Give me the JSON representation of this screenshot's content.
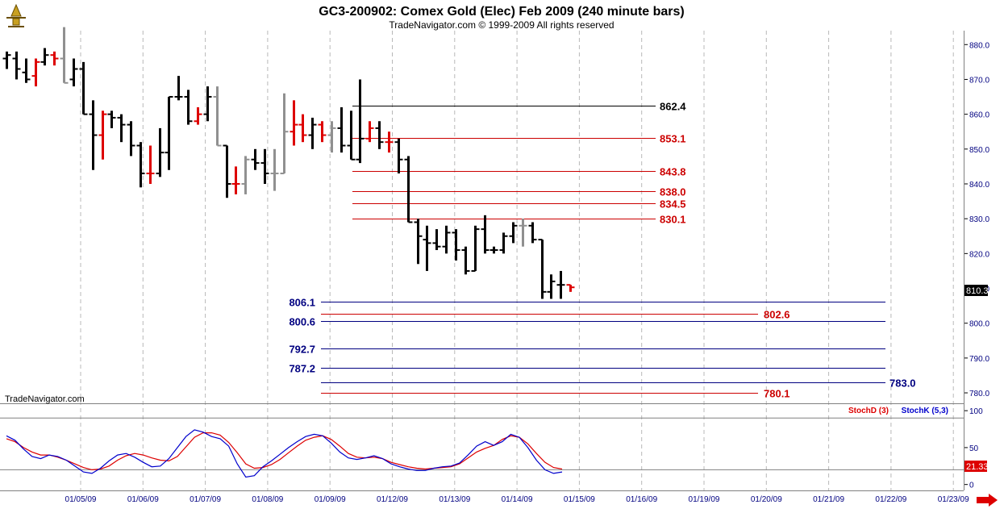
{
  "header": {
    "title": "GC3-200902:  Comex Gold (Elec) Feb 2009  (240 minute bars)",
    "subtitle": "TradeNavigator.com © 1999-2009 All rights reserved",
    "watermark": "TradeNavigator.com"
  },
  "chart_data": [
    {
      "type": "bar",
      "title": "GC3-200902:  Comex Gold (Elec) Feb 2009  (240 minute bars)",
      "ylim": [
        777,
        884
      ],
      "y_ticks": [
        780,
        790,
        800,
        810,
        820,
        830,
        840,
        850,
        860,
        870,
        880
      ],
      "x_ticks": [
        "01/05/09",
        "01/06/09",
        "01/07/09",
        "01/08/09",
        "01/09/09",
        "01/12/09",
        "01/13/09",
        "01/14/09",
        "01/15/09",
        "01/16/09",
        "01/19/09",
        "01/20/09",
        "01/21/09",
        "01/22/09",
        "01/23/09"
      ],
      "grid": true,
      "last_price_label": "810.3",
      "bars": [
        {
          "o": 876,
          "h": 878,
          "l": 873,
          "c": 877,
          "color": "black"
        },
        {
          "o": 876,
          "h": 878,
          "l": 870,
          "c": 873,
          "color": "black"
        },
        {
          "o": 872,
          "h": 876,
          "l": 869,
          "c": 870,
          "color": "black"
        },
        {
          "o": 871,
          "h": 876,
          "l": 868,
          "c": 875,
          "color": "red"
        },
        {
          "o": 875,
          "h": 879,
          "l": 874,
          "c": 877,
          "color": "black"
        },
        {
          "o": 877,
          "h": 878,
          "l": 874,
          "c": 876,
          "color": "red"
        },
        {
          "o": 876,
          "h": 885,
          "l": 869,
          "c": 869,
          "color": "gray"
        },
        {
          "o": 870,
          "h": 876,
          "l": 868,
          "c": 873,
          "color": "black"
        },
        {
          "o": 873,
          "h": 875,
          "l": 860,
          "c": 860,
          "color": "black"
        },
        {
          "o": 860,
          "h": 864,
          "l": 844,
          "c": 854,
          "color": "black"
        },
        {
          "o": 854,
          "h": 861,
          "l": 847,
          "c": 860,
          "color": "red"
        },
        {
          "o": 860,
          "h": 861,
          "l": 856,
          "c": 859,
          "color": "black"
        },
        {
          "o": 859,
          "h": 860,
          "l": 852,
          "c": 857,
          "color": "black"
        },
        {
          "o": 857,
          "h": 858,
          "l": 848,
          "c": 851,
          "color": "black"
        },
        {
          "o": 851,
          "h": 852,
          "l": 839,
          "c": 843,
          "color": "black"
        },
        {
          "o": 843,
          "h": 851,
          "l": 840,
          "c": 843,
          "color": "red"
        },
        {
          "o": 843,
          "h": 856,
          "l": 842,
          "c": 849,
          "color": "black"
        },
        {
          "o": 849,
          "h": 865,
          "l": 844,
          "c": 865,
          "color": "black"
        },
        {
          "o": 865,
          "h": 871,
          "l": 864,
          "c": 865,
          "color": "black"
        },
        {
          "o": 865,
          "h": 867,
          "l": 857,
          "c": 858,
          "color": "black"
        },
        {
          "o": 858,
          "h": 862,
          "l": 857,
          "c": 860,
          "color": "red"
        },
        {
          "o": 860,
          "h": 868,
          "l": 858,
          "c": 865,
          "color": "black"
        },
        {
          "o": 865,
          "h": 868,
          "l": 851,
          "c": 851,
          "color": "gray"
        },
        {
          "o": 851,
          "h": 851,
          "l": 836,
          "c": 840,
          "color": "black"
        },
        {
          "o": 840,
          "h": 845,
          "l": 837,
          "c": 840,
          "color": "red"
        },
        {
          "o": 840,
          "h": 848,
          "l": 837,
          "c": 847,
          "color": "gray"
        },
        {
          "o": 847,
          "h": 850,
          "l": 844,
          "c": 846,
          "color": "black"
        },
        {
          "o": 846,
          "h": 850,
          "l": 840,
          "c": 843,
          "color": "black"
        },
        {
          "o": 843,
          "h": 850,
          "l": 838,
          "c": 843,
          "color": "gray"
        },
        {
          "o": 843,
          "h": 866,
          "l": 843,
          "c": 855,
          "color": "gray"
        },
        {
          "o": 855,
          "h": 864,
          "l": 851,
          "c": 857,
          "color": "red"
        },
        {
          "o": 857,
          "h": 860,
          "l": 852,
          "c": 854,
          "color": "red"
        },
        {
          "o": 854,
          "h": 859,
          "l": 850,
          "c": 857,
          "color": "black"
        },
        {
          "o": 857,
          "h": 858,
          "l": 852,
          "c": 854,
          "color": "red"
        },
        {
          "o": 854,
          "h": 858,
          "l": 849,
          "c": 856,
          "color": "gray"
        },
        {
          "o": 856,
          "h": 862,
          "l": 849,
          "c": 851,
          "color": "black"
        },
        {
          "o": 851,
          "h": 861,
          "l": 847,
          "c": 847,
          "color": "black"
        },
        {
          "o": 847,
          "h": 870,
          "l": 846,
          "c": 853,
          "color": "black"
        },
        {
          "o": 853,
          "h": 858,
          "l": 852,
          "c": 856,
          "color": "red"
        },
        {
          "o": 856,
          "h": 858,
          "l": 850,
          "c": 852,
          "color": "black"
        },
        {
          "o": 852,
          "h": 855,
          "l": 849,
          "c": 852,
          "color": "red"
        },
        {
          "o": 852,
          "h": 853,
          "l": 843,
          "c": 847,
          "color": "black"
        },
        {
          "o": 847,
          "h": 848,
          "l": 829,
          "c": 829,
          "color": "black"
        },
        {
          "o": 829,
          "h": 830,
          "l": 817,
          "c": 825,
          "color": "black"
        },
        {
          "o": 824,
          "h": 828,
          "l": 815,
          "c": 823,
          "color": "black"
        },
        {
          "o": 823,
          "h": 827,
          "l": 821,
          "c": 822,
          "color": "black"
        },
        {
          "o": 822,
          "h": 828,
          "l": 820,
          "c": 826,
          "color": "black"
        },
        {
          "o": 826,
          "h": 827,
          "l": 818,
          "c": 821,
          "color": "black"
        },
        {
          "o": 821,
          "h": 822,
          "l": 814,
          "c": 815,
          "color": "black"
        },
        {
          "o": 815,
          "h": 828,
          "l": 815,
          "c": 827,
          "color": "black"
        },
        {
          "o": 827,
          "h": 831,
          "l": 820,
          "c": 821,
          "color": "black"
        },
        {
          "o": 821,
          "h": 822,
          "l": 820,
          "c": 821,
          "color": "black"
        },
        {
          "o": 821,
          "h": 826,
          "l": 820,
          "c": 825,
          "color": "black"
        },
        {
          "o": 825,
          "h": 829,
          "l": 823,
          "c": 828,
          "color": "black"
        },
        {
          "o": 828,
          "h": 830,
          "l": 822,
          "c": 828,
          "color": "gray"
        },
        {
          "o": 828,
          "h": 829,
          "l": 823,
          "c": 824,
          "color": "black"
        },
        {
          "o": 824,
          "h": 824,
          "l": 807,
          "c": 809,
          "color": "black"
        },
        {
          "o": 809,
          "h": 814,
          "l": 807,
          "c": 812,
          "color": "black"
        },
        {
          "o": 811,
          "h": 815,
          "l": 807,
          "c": 811,
          "color": "black"
        },
        {
          "o": 811,
          "h": 811,
          "l": 809,
          "c": 810.3,
          "color": "red"
        }
      ],
      "fib_levels": [
        {
          "value": 862.4,
          "label": "862.4",
          "color": "#000000",
          "side": "right"
        },
        {
          "value": 853.1,
          "label": "853.1",
          "color": "#cc0000",
          "side": "right"
        },
        {
          "value": 843.8,
          "label": "843.8",
          "color": "#cc0000",
          "side": "right"
        },
        {
          "value": 838.0,
          "label": "838.0",
          "color": "#cc0000",
          "side": "right"
        },
        {
          "value": 834.5,
          "label": "834.5",
          "color": "#cc0000",
          "side": "right"
        },
        {
          "value": 830.1,
          "label": "830.1",
          "color": "#cc0000",
          "side": "right"
        },
        {
          "value": 806.1,
          "label": "806.1",
          "color": "#000080",
          "side": "left"
        },
        {
          "value": 802.6,
          "label": "802.6",
          "color": "#cc0000",
          "side": "mid"
        },
        {
          "value": 800.6,
          "label": "800.6",
          "color": "#000080",
          "side": "left"
        },
        {
          "value": 792.7,
          "label": "792.7",
          "color": "#000080",
          "side": "left"
        },
        {
          "value": 787.2,
          "label": "787.2",
          "color": "#000080",
          "side": "left"
        },
        {
          "value": 783.0,
          "label": "783.0",
          "color": "#000080",
          "side": "far"
        },
        {
          "value": 780.1,
          "label": "780.1",
          "color": "#cc0000",
          "side": "mid"
        }
      ]
    },
    {
      "type": "line",
      "ylim": [
        -8,
        110
      ],
      "y_ticks": [
        0,
        50,
        100
      ],
      "reference_lines": [
        90,
        20
      ],
      "last_value_label": "21.33",
      "series": [
        {
          "name": "StochD (3)",
          "color": "#dd0000",
          "values": [
            62,
            58,
            50,
            44,
            40,
            40,
            37,
            33,
            28,
            23,
            20,
            21,
            25,
            33,
            39,
            42,
            40,
            36,
            33,
            32,
            38,
            51,
            64,
            70,
            70,
            67,
            57,
            43,
            28,
            22,
            23,
            27,
            34,
            43,
            52,
            60,
            64,
            66,
            61,
            52,
            42,
            37,
            36,
            37,
            35,
            30,
            27,
            24,
            22,
            21,
            22,
            23,
            24,
            28,
            36,
            44,
            49,
            53,
            61,
            66,
            64,
            55,
            42,
            30,
            23,
            21
          ]
        },
        {
          "name": "StochK (5,3)",
          "color": "#0000cc",
          "values": [
            66,
            60,
            48,
            38,
            35,
            40,
            38,
            33,
            25,
            17,
            15,
            22,
            32,
            40,
            42,
            37,
            30,
            24,
            25,
            35,
            50,
            65,
            74,
            71,
            65,
            62,
            52,
            28,
            10,
            12,
            24,
            32,
            41,
            50,
            58,
            65,
            68,
            66,
            56,
            44,
            36,
            34,
            36,
            39,
            35,
            28,
            24,
            21,
            19,
            19,
            22,
            24,
            25,
            29,
            40,
            52,
            58,
            53,
            58,
            68,
            64,
            50,
            33,
            20,
            15,
            17
          ]
        }
      ]
    }
  ]
}
